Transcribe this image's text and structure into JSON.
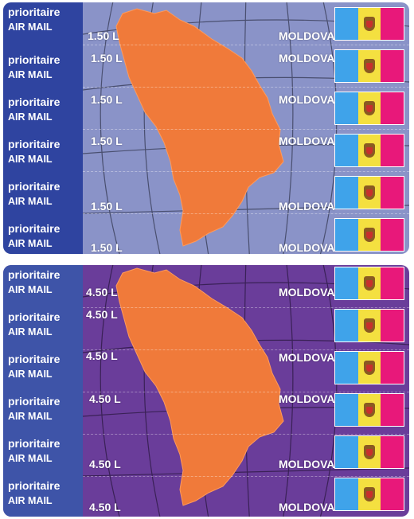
{
  "label_line1": "prioritaire",
  "label_line2": "AIR MAIL",
  "country": "MOLDOVA",
  "sheets": [
    {
      "price": "1.50 L",
      "background_color": "#8a93c8",
      "label_column_color": "#2f44a0"
    },
    {
      "price": "4.50 L",
      "background_color": "#6a3d9a",
      "label_column_color": "#3e54a8"
    }
  ],
  "map_color": "#f07a3a",
  "flag_colors": {
    "blue": "#3fa3ea",
    "yellow": "#f4e040",
    "red": "#e8187a"
  },
  "icons": {
    "map": "moldova-map-icon",
    "flag": "moldova-flag-icon",
    "crest": "coat-of-arms-icon"
  }
}
